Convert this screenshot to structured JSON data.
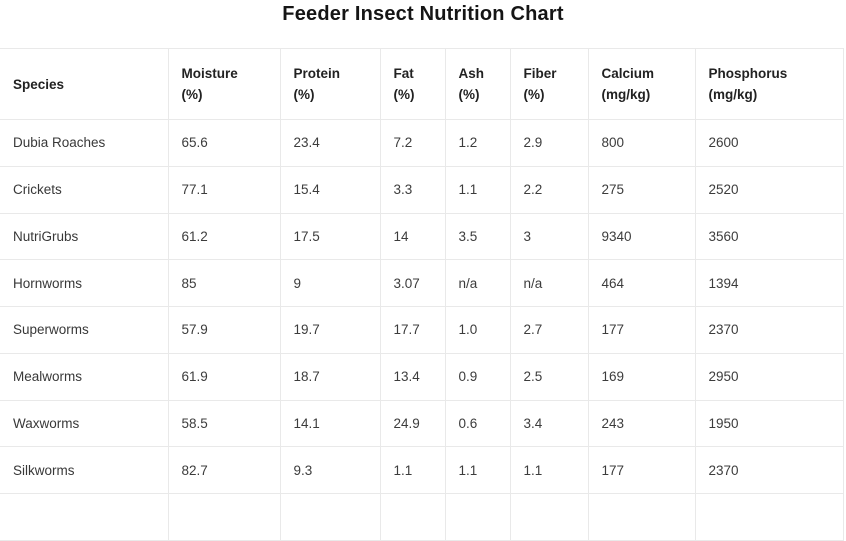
{
  "title": "Feeder Insect Nutrition Chart",
  "colors": {
    "background": "#ffffff",
    "border": "#e9e9e9",
    "title_text": "#151515",
    "header_text": "#222222",
    "cell_text": "#3c3c3c"
  },
  "chart_data": {
    "type": "table",
    "title": "Feeder Insect Nutrition Chart",
    "columns": [
      {
        "label": "Species",
        "unit": ""
      },
      {
        "label": "Moisture",
        "unit": "(%)"
      },
      {
        "label": "Protein",
        "unit": "(%)"
      },
      {
        "label": "Fat",
        "unit": "(%)"
      },
      {
        "label": "Ash",
        "unit": "(%)"
      },
      {
        "label": "Fiber",
        "unit": "(%)"
      },
      {
        "label": "Calcium",
        "unit": "(mg/kg)"
      },
      {
        "label": "Phosphorus",
        "unit": "(mg/kg)"
      }
    ],
    "rows": [
      [
        "Dubia Roaches",
        "65.6",
        "23.4",
        "7.2",
        "1.2",
        "2.9",
        "800",
        "2600"
      ],
      [
        "Crickets",
        "77.1",
        "15.4",
        "3.3",
        "1.1",
        "2.2",
        "275",
        "2520"
      ],
      [
        "NutriGrubs",
        "61.2",
        "17.5",
        "14",
        "3.5",
        "3",
        "9340",
        "3560"
      ],
      [
        "Hornworms",
        "85",
        "9",
        "3.07",
        "n/a",
        "n/a",
        "464",
        "1394"
      ],
      [
        "Superworms",
        "57.9",
        "19.7",
        "17.7",
        "1.0",
        "2.7",
        "177",
        "2370"
      ],
      [
        "Mealworms",
        "61.9",
        "18.7",
        "13.4",
        "0.9",
        "2.5",
        "169",
        "2950"
      ],
      [
        "Waxworms",
        "58.5",
        "14.1",
        "24.9",
        "0.6",
        "3.4",
        "243",
        "1950"
      ],
      [
        "Silkworms",
        "82.7",
        "9.3",
        "1.1",
        "1.1",
        "1.1",
        "177",
        "2370"
      ]
    ],
    "partial_cutoff_row_at_bottom": true
  }
}
